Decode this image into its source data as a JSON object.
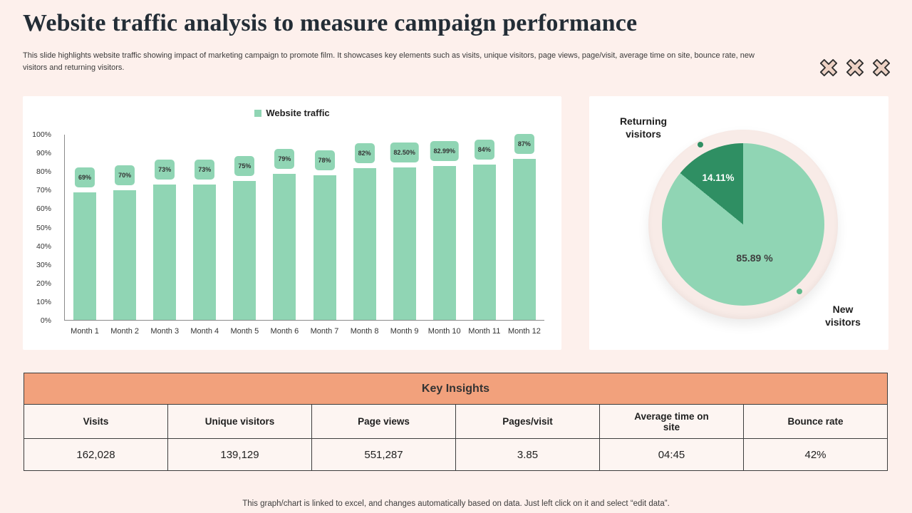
{
  "page": {
    "title": "Website traffic analysis to measure campaign performance",
    "subtitle": "This slide highlights website traffic showing impact of marketing campaign to promote film. It showcases key elements such as visits, unique visitors, page views, page/visit, average time on site, bounce rate, new visitors and returning visitors.",
    "footer": "This graph/chart is linked to excel,  and changes automatically based on data. Just left click on it and select “edit data”."
  },
  "colors": {
    "background": "#fdf0ec",
    "bar_green": "#90d5b4",
    "dark_green": "#2f8f63",
    "table_header_orange": "#f2a17c",
    "cell_background": "#fdf5f2",
    "panel": "#ffffff"
  },
  "chart_data": [
    {
      "type": "bar",
      "title": "Website traffic",
      "legend": [
        "Website traffic"
      ],
      "categories": [
        "Month 1",
        "Month 2",
        "Month 3",
        "Month 4",
        "Month 5",
        "Month 6",
        "Month 7",
        "Month 8",
        "Month 9",
        "Month 10",
        "Month 11",
        "Month 12"
      ],
      "values": [
        69,
        70,
        73,
        73,
        75,
        79,
        78,
        82,
        82.5,
        82.99,
        84,
        87
      ],
      "labels": [
        "69%",
        "70%",
        "73%",
        "73%",
        "75%",
        "79%",
        "78%",
        "82%",
        "82.50%",
        "82.99%",
        "84%",
        "87%"
      ],
      "xlabel": "",
      "ylabel": "",
      "ylim": [
        0,
        100
      ],
      "ytick_step": 10,
      "grid": false,
      "legend_position": "top"
    },
    {
      "type": "pie",
      "labels": [
        "Returning visitors",
        "New visitors"
      ],
      "values": [
        14.11,
        85.89
      ],
      "display": [
        "14.11%",
        "85.89 %"
      ]
    }
  ],
  "table": {
    "title": "Key Insights",
    "headers": [
      "Visits",
      "Unique visitors",
      "Page views",
      "Pages/visit",
      "Average time on site",
      "Bounce rate"
    ],
    "values": [
      "162,028",
      "139,129",
      "551,287",
      "3.85",
      "04:45",
      "42%"
    ]
  }
}
